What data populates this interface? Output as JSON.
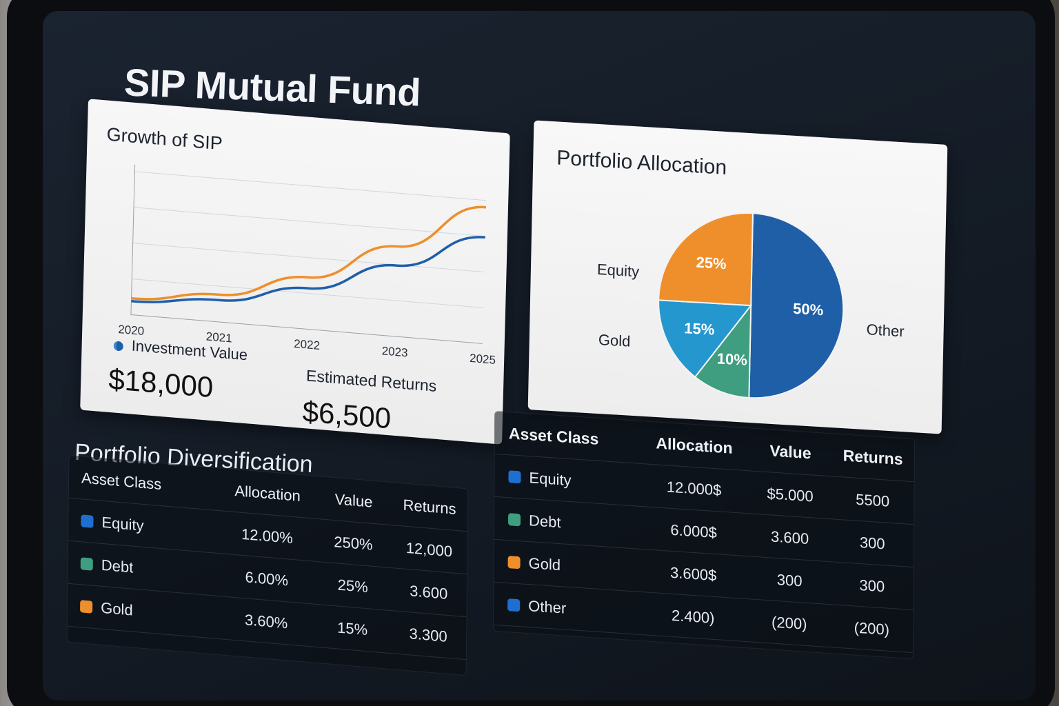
{
  "page_title": "SIP Mutual Fund",
  "colors": {
    "orange": "#ef8f2c",
    "blue": "#1f5fa8",
    "light_blue": "#2597cf",
    "green": "#3f9e7f",
    "screen_bg": "#141b25"
  },
  "growth_card": {
    "title": "Growth of SIP",
    "legend_label": "Investment Value",
    "investment_value": "$18,000",
    "returns_label": "Estimated Returns",
    "returns_value": "$6,500"
  },
  "allocation_card": {
    "title": "Portfolio Allocation",
    "labels": {
      "equity": "Equity",
      "gold": "Gold",
      "other": "Other"
    }
  },
  "chart_data": [
    {
      "type": "line",
      "title": "Growth of SIP",
      "x": [
        "2020",
        "2021",
        "2022",
        "2023",
        "2025"
      ],
      "series": [
        {
          "name": "",
          "color": "#ef8f2c",
          "values": [
            0.12,
            0.2,
            0.38,
            0.66,
            1.0
          ]
        },
        {
          "name": "Investment Value",
          "color": "#1f5fa8",
          "values": [
            0.1,
            0.16,
            0.3,
            0.52,
            0.78
          ]
        }
      ],
      "xlabel": "",
      "ylabel": "",
      "grid": true
    },
    {
      "type": "pie",
      "title": "Portfolio Allocation",
      "slices": [
        {
          "label": "50%",
          "value": 50,
          "color": "#1f5fa8"
        },
        {
          "label": "10%",
          "value": 10,
          "color": "#3f9e7f"
        },
        {
          "label": "15%",
          "value": 15,
          "color": "#2597cf"
        },
        {
          "label": "25%",
          "value": 25,
          "color": "#ef8f2c"
        }
      ]
    }
  ],
  "diversification": {
    "title": "Portfolio Diversification",
    "headers": [
      "Asset Class",
      "Allocation",
      "Value",
      "Returns"
    ],
    "rows": [
      {
        "name": "Equity",
        "color": "#1f6fd0",
        "allocation": "12.00%",
        "value": "250%",
        "returns": "12,000"
      },
      {
        "name": "Debt",
        "color": "#3f9e7f",
        "allocation": "6.00%",
        "value": "25%",
        "returns": "3.600"
      },
      {
        "name": "Gold",
        "color": "#ef8f2c",
        "allocation": "3.60%",
        "value": "15%",
        "returns": "3.300"
      }
    ]
  },
  "allocation_table": {
    "headers": [
      "Asset Class",
      "Allocation",
      "Value",
      "Returns"
    ],
    "rows": [
      {
        "name": "Equity",
        "color": "#1f6fd0",
        "allocation": "12.000$",
        "value": "$5.000",
        "returns": "5500"
      },
      {
        "name": "Debt",
        "color": "#3f9e7f",
        "allocation": "6.000$",
        "value": "3.600",
        "returns": "300"
      },
      {
        "name": "Gold",
        "color": "#ef8f2c",
        "allocation": "3.600$",
        "value": "300",
        "returns": "300"
      },
      {
        "name": "Other",
        "color": "#1f6fd0",
        "allocation": "2.400)",
        "value": "(200)",
        "returns": "(200)"
      }
    ]
  }
}
